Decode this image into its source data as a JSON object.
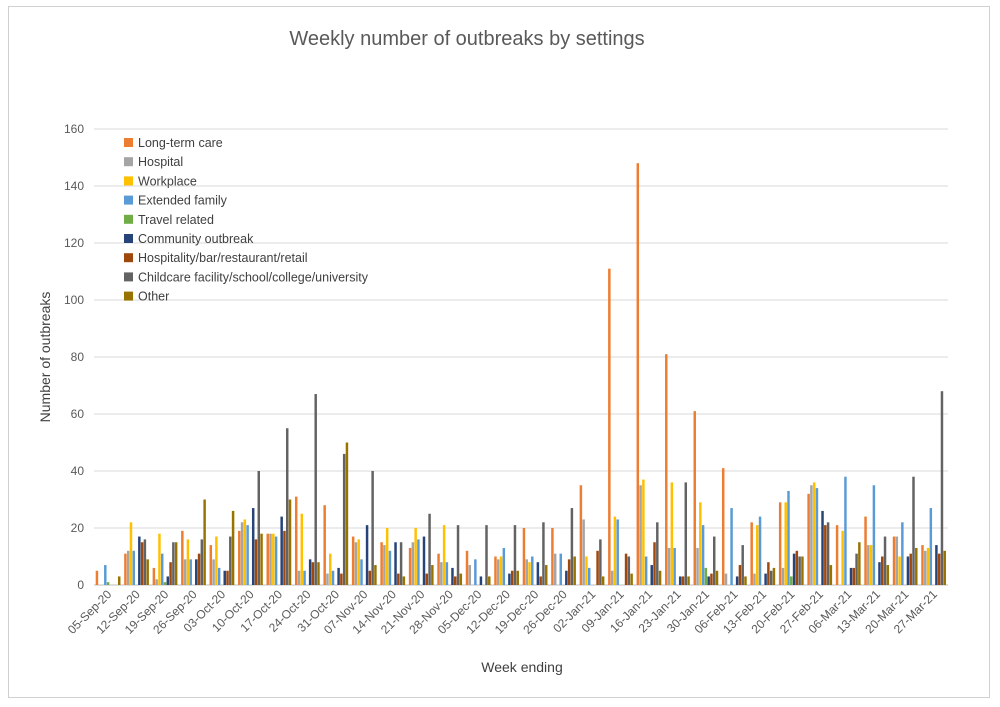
{
  "chart_data": {
    "type": "bar",
    "title": "Weekly number of outbreaks by settings",
    "xlabel": "Week ending",
    "ylabel": "Number of outbreaks",
    "ylim": [
      0,
      160
    ],
    "yticks": [
      0,
      20,
      40,
      60,
      80,
      100,
      120,
      140,
      160
    ],
    "grid": true,
    "legend_position": "top-left",
    "categories": [
      "05-Sep-20",
      "12-Sep-20",
      "19-Sep-20",
      "26-Sep-20",
      "03-Oct-20",
      "10-Oct-20",
      "17-Oct-20",
      "24-Oct-20",
      "31-Oct-20",
      "07-Nov-20",
      "14-Nov-20",
      "21-Nov-20",
      "28-Nov-20",
      "05-Dec-20",
      "12-Dec-20",
      "19-Dec-20",
      "26-Dec-20",
      "02-Jan-21",
      "09-Jan-21",
      "16-Jan-21",
      "23-Jan-21",
      "30-Jan-21",
      "06-Feb-21",
      "13-Feb-21",
      "20-Feb-21",
      "27-Feb-21",
      "06-Mar-21",
      "13-Mar-21",
      "20-Mar-21",
      "27-Mar-21"
    ],
    "series": [
      {
        "name": "Long-term care",
        "color": "#ED7D31",
        "values": [
          5,
          11,
          6,
          19,
          14,
          19,
          18,
          31,
          28,
          17,
          15,
          13,
          11,
          12,
          10,
          20,
          20,
          35,
          111,
          148,
          81,
          61,
          41,
          22,
          29,
          32,
          21,
          24,
          17,
          14
        ]
      },
      {
        "name": "Hospital",
        "color": "#A5A5A5",
        "values": [
          0,
          12,
          2,
          9,
          9,
          22,
          18,
          5,
          4,
          15,
          14,
          15,
          8,
          7,
          9,
          9,
          11,
          23,
          5,
          35,
          13,
          13,
          4,
          4,
          6,
          35,
          0,
          14,
          17,
          12
        ]
      },
      {
        "name": "Workplace",
        "color": "#FFC000",
        "values": [
          0,
          22,
          18,
          16,
          17,
          23,
          18,
          25,
          11,
          16,
          20,
          20,
          21,
          0,
          10,
          8,
          0,
          10,
          24,
          37,
          36,
          29,
          0,
          21,
          29,
          36,
          19,
          14,
          10,
          13
        ]
      },
      {
        "name": "Extended family",
        "color": "#5B9BD5",
        "values": [
          7,
          12,
          11,
          9,
          6,
          21,
          17,
          5,
          5,
          9,
          12,
          16,
          8,
          9,
          13,
          10,
          11,
          6,
          23,
          10,
          13,
          21,
          27,
          24,
          33,
          34,
          38,
          35,
          22,
          27
        ]
      },
      {
        "name": "Travel related",
        "color": "#70AD47",
        "values": [
          1,
          0,
          1,
          0,
          0,
          0,
          0,
          0,
          0,
          0,
          0,
          0,
          0,
          0,
          0,
          0,
          0,
          0,
          0,
          0,
          0,
          6,
          0,
          0,
          3,
          0,
          0,
          0,
          0,
          0
        ]
      },
      {
        "name": "Community outbreak",
        "color": "#264478",
        "values": [
          0,
          17,
          3,
          9,
          5,
          27,
          24,
          9,
          6,
          21,
          15,
          17,
          6,
          3,
          4,
          8,
          5,
          0,
          0,
          7,
          3,
          3,
          3,
          4,
          11,
          26,
          6,
          8,
          10,
          14
        ]
      },
      {
        "name": "Hospitality/bar/restaurant/retail",
        "color": "#9E480E",
        "values": [
          0,
          15,
          8,
          11,
          5,
          16,
          19,
          8,
          4,
          5,
          4,
          4,
          3,
          0,
          5,
          3,
          9,
          12,
          11,
          15,
          3,
          4,
          7,
          8,
          12,
          21,
          6,
          10,
          11,
          11
        ]
      },
      {
        "name": "Childcare facility/school/college/university",
        "color": "#636363",
        "values": [
          0,
          16,
          15,
          16,
          17,
          40,
          55,
          67,
          46,
          40,
          15,
          25,
          21,
          21,
          21,
          22,
          27,
          16,
          10,
          22,
          36,
          17,
          14,
          5,
          10,
          22,
          11,
          17,
          38,
          68
        ]
      },
      {
        "name": "Other",
        "color": "#997300",
        "values": [
          3,
          9,
          15,
          30,
          26,
          18,
          30,
          8,
          50,
          7,
          3,
          7,
          4,
          3,
          5,
          7,
          10,
          3,
          4,
          5,
          3,
          5,
          3,
          6,
          10,
          7,
          15,
          7,
          13,
          12
        ]
      }
    ]
  }
}
